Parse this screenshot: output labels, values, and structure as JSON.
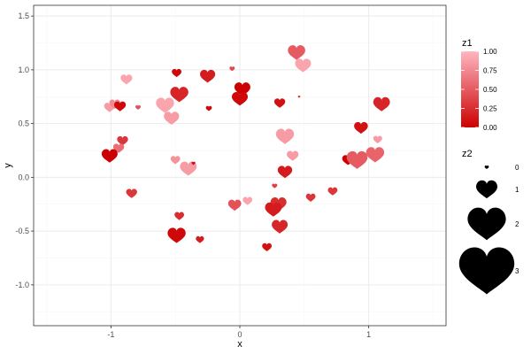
{
  "chart_data": {
    "type": "scatter",
    "title": "",
    "xlabel": "x",
    "ylabel": "y",
    "xlim": [
      -1.6,
      1.6
    ],
    "ylim": [
      -1.38,
      1.6
    ],
    "x_ticks": [
      -1,
      0,
      1
    ],
    "x_tick_labels": [
      "-1",
      "0",
      "1"
    ],
    "y_ticks": [
      -1.0,
      -0.5,
      0.0,
      0.5,
      1.0,
      1.5
    ],
    "y_tick_labels": [
      "-1.0",
      "-0.5",
      "0.0",
      "0.5",
      "1.0",
      "1.5"
    ],
    "grid": true,
    "marker": "heart",
    "colors": {
      "low": "#cc0000",
      "high": "#ffb6c1",
      "grid_major": "#ebebeb",
      "grid_minor": "#f5f5f5",
      "panel_border": "#333333"
    },
    "legend_color": {
      "title": "z1",
      "labels": [
        "1.00",
        "0.75",
        "0.50",
        "0.25",
        "0.00"
      ],
      "values": [
        1.0,
        0.75,
        0.5,
        0.25,
        0.0
      ],
      "placement": "right"
    },
    "legend_size": {
      "title": "z2",
      "labels": [
        "0",
        "1",
        "2",
        "3"
      ],
      "values": [
        0,
        1,
        2,
        3
      ],
      "placement": "right"
    },
    "points": [
      {
        "x": -0.49,
        "y": 0.97,
        "z1": 0.05,
        "z2": 1.1
      },
      {
        "x": -0.25,
        "y": 0.94,
        "z1": 0.15,
        "z2": 1.9
      },
      {
        "x": -0.06,
        "y": 1.01,
        "z1": 0.4,
        "z2": 0.5
      },
      {
        "x": 0.02,
        "y": 0.82,
        "z1": 0.0,
        "z2": 2.0
      },
      {
        "x": 0.0,
        "y": 0.73,
        "z1": 0.05,
        "z2": 2.0
      },
      {
        "x": 0.44,
        "y": 1.16,
        "z1": 0.5,
        "z2": 2.2
      },
      {
        "x": 0.49,
        "y": 1.04,
        "z1": 0.9,
        "z2": 2.0
      },
      {
        "x": -0.88,
        "y": 0.91,
        "z1": 0.9,
        "z2": 1.4
      },
      {
        "x": -1.01,
        "y": 0.65,
        "z1": 0.85,
        "z2": 1.3
      },
      {
        "x": -0.97,
        "y": 0.68,
        "z1": 0.75,
        "z2": 1.3
      },
      {
        "x": -0.93,
        "y": 0.66,
        "z1": 0.05,
        "z2": 1.4
      },
      {
        "x": -0.79,
        "y": 0.65,
        "z1": 0.45,
        "z2": 0.5
      },
      {
        "x": -0.47,
        "y": 0.77,
        "z1": 0.2,
        "z2": 2.3
      },
      {
        "x": -0.58,
        "y": 0.67,
        "z1": 0.9,
        "z2": 2.3
      },
      {
        "x": -0.53,
        "y": 0.55,
        "z1": 0.85,
        "z2": 1.9
      },
      {
        "x": -0.24,
        "y": 0.64,
        "z1": 0.05,
        "z2": 0.6
      },
      {
        "x": 0.31,
        "y": 0.69,
        "z1": 0.1,
        "z2": 1.3
      },
      {
        "x": 0.46,
        "y": 0.75,
        "z1": 0.2,
        "z2": 0.1
      },
      {
        "x": 1.1,
        "y": 0.68,
        "z1": 0.2,
        "z2": 2.1
      },
      {
        "x": 0.94,
        "y": 0.46,
        "z1": 0.1,
        "z2": 1.7
      },
      {
        "x": 1.07,
        "y": 0.35,
        "z1": 0.85,
        "z2": 1.0
      },
      {
        "x": 0.35,
        "y": 0.38,
        "z1": 0.85,
        "z2": 2.3
      },
      {
        "x": 0.41,
        "y": 0.2,
        "z1": 0.85,
        "z2": 1.4
      },
      {
        "x": 0.84,
        "y": 0.16,
        "z1": 0.0,
        "z2": 1.4
      },
      {
        "x": 0.91,
        "y": 0.16,
        "z1": 0.5,
        "z2": 2.7
      },
      {
        "x": 1.05,
        "y": 0.21,
        "z1": 0.55,
        "z2": 2.3
      },
      {
        "x": -0.91,
        "y": 0.34,
        "z1": 0.3,
        "z2": 1.3
      },
      {
        "x": -0.94,
        "y": 0.27,
        "z1": 0.6,
        "z2": 1.3
      },
      {
        "x": -1.01,
        "y": 0.2,
        "z1": 0.0,
        "z2": 2.0
      },
      {
        "x": -0.5,
        "y": 0.16,
        "z1": 0.8,
        "z2": 1.1
      },
      {
        "x": -0.4,
        "y": 0.08,
        "z1": 0.85,
        "z2": 2.1
      },
      {
        "x": -0.36,
        "y": 0.13,
        "z1": 0.1,
        "z2": 0.3
      },
      {
        "x": 0.35,
        "y": 0.05,
        "z1": 0.15,
        "z2": 1.8
      },
      {
        "x": -0.84,
        "y": -0.15,
        "z1": 0.3,
        "z2": 1.3
      },
      {
        "x": 0.27,
        "y": -0.08,
        "z1": 0.35,
        "z2": 0.5
      },
      {
        "x": 0.72,
        "y": -0.13,
        "z1": 0.3,
        "z2": 1.1
      },
      {
        "x": 0.55,
        "y": -0.19,
        "z1": 0.3,
        "z2": 1.1
      },
      {
        "x": -0.04,
        "y": -0.26,
        "z1": 0.45,
        "z2": 1.6
      },
      {
        "x": 0.06,
        "y": -0.22,
        "z1": 0.9,
        "z2": 1.1
      },
      {
        "x": 0.3,
        "y": -0.25,
        "z1": 0.25,
        "z2": 2.0
      },
      {
        "x": 0.26,
        "y": -0.3,
        "z1": 0.15,
        "z2": 2.1
      },
      {
        "x": -0.47,
        "y": -0.36,
        "z1": 0.25,
        "z2": 1.1
      },
      {
        "x": 0.31,
        "y": -0.46,
        "z1": 0.2,
        "z2": 2.0
      },
      {
        "x": -0.49,
        "y": -0.54,
        "z1": 0.05,
        "z2": 2.3
      },
      {
        "x": -0.31,
        "y": -0.58,
        "z1": 0.15,
        "z2": 0.9
      },
      {
        "x": 0.21,
        "y": -0.65,
        "z1": 0.1,
        "z2": 1.1
      }
    ]
  }
}
